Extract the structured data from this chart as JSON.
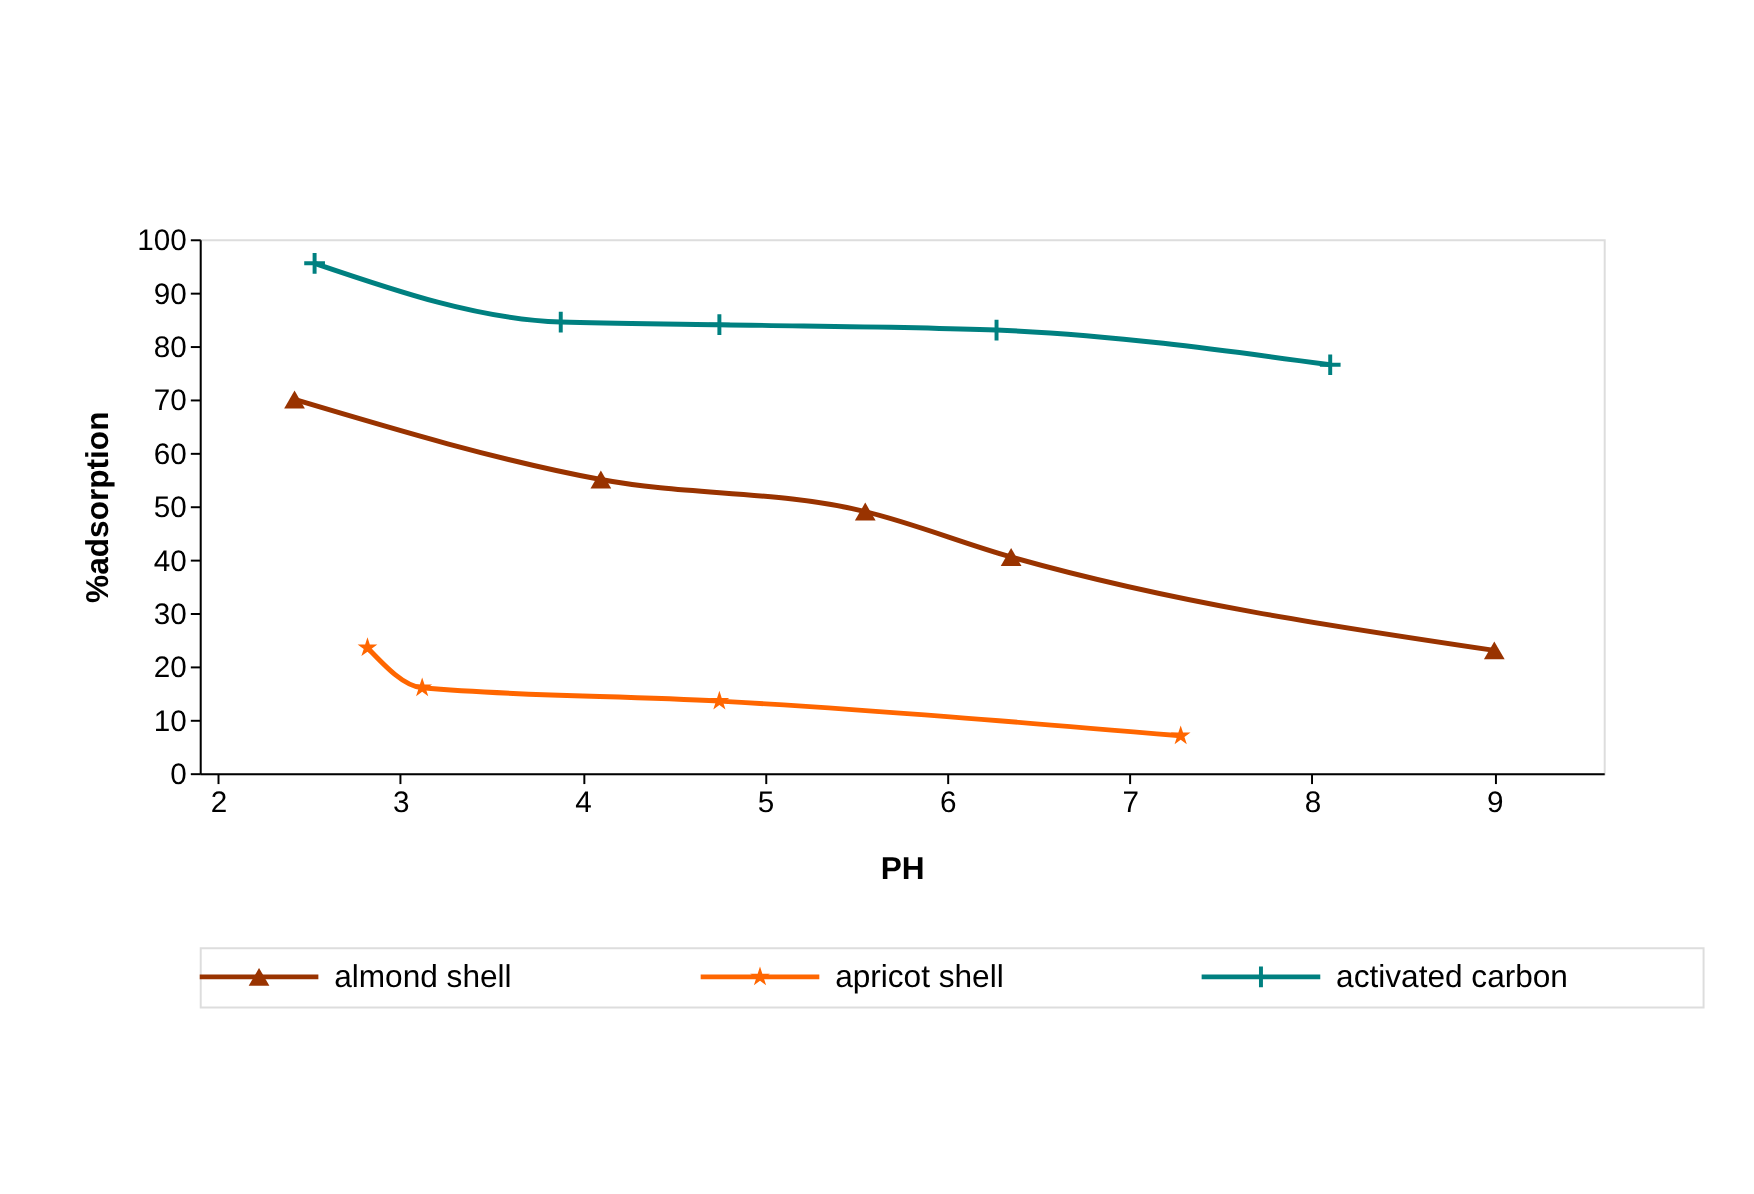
{
  "chart_data": {
    "type": "line",
    "xlabel": "PH",
    "ylabel": "%adsorption",
    "xlim": [
      1.9,
      9.6
    ],
    "xticks": [
      2,
      3,
      4,
      5,
      6,
      7,
      8,
      9
    ],
    "ylim": [
      0,
      100
    ],
    "yticks": [
      0,
      10,
      20,
      30,
      40,
      50,
      60,
      70,
      80,
      90,
      100
    ],
    "grid": false,
    "legend": "bottom",
    "line_style": "solid",
    "series": [
      {
        "name": "almond shell",
        "color": "#993300",
        "marker": "triangle",
        "x": [
          2.42,
          4.1,
          5.55,
          6.35,
          9.0
        ],
        "values": [
          70,
          55,
          49,
          40.5,
          23
        ]
      },
      {
        "name": "apricot shell",
        "color": "#ff6600",
        "marker": "star",
        "x": [
          2.82,
          3.12,
          4.75,
          7.28
        ],
        "values": [
          23.5,
          16,
          13.5,
          7
        ]
      },
      {
        "name": "activated carbon",
        "color": "#008080",
        "marker": "cross",
        "x": [
          2.53,
          3.88,
          4.75,
          6.27,
          8.1
        ],
        "values": [
          95.5,
          84.5,
          84,
          83,
          76.5
        ]
      }
    ]
  }
}
